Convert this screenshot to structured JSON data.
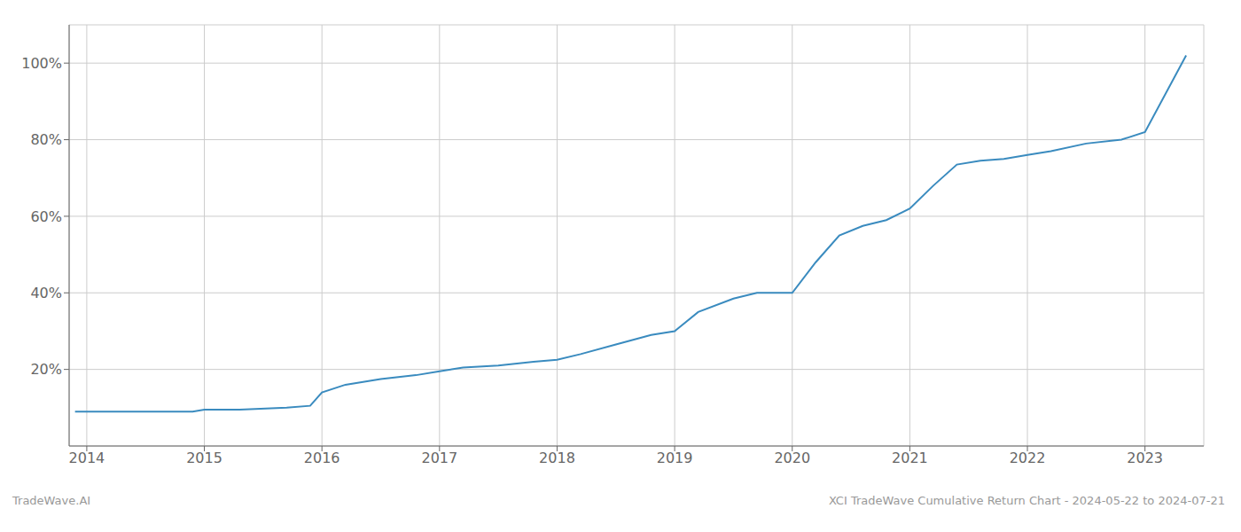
{
  "chart_data": {
    "type": "line",
    "x": [
      2013.9,
      2014.0,
      2014.1,
      2014.3,
      2014.6,
      2014.9,
      2015.0,
      2015.1,
      2015.3,
      2015.7,
      2015.9,
      2016.0,
      2016.2,
      2016.5,
      2016.8,
      2017.0,
      2017.2,
      2017.5,
      2017.8,
      2018.0,
      2018.2,
      2018.5,
      2018.8,
      2019.0,
      2019.2,
      2019.5,
      2019.7,
      2020.0,
      2020.2,
      2020.4,
      2020.6,
      2020.8,
      2021.0,
      2021.2,
      2021.4,
      2021.6,
      2021.8,
      2022.0,
      2022.2,
      2022.5,
      2022.8,
      2023.0,
      2023.35
    ],
    "values": [
      9,
      9,
      9,
      9,
      9,
      9,
      9.5,
      9.5,
      9.5,
      10,
      10.5,
      14,
      16,
      17.5,
      18.5,
      19.5,
      20.5,
      21,
      22,
      22.5,
      24,
      26.5,
      29,
      30,
      35,
      38.5,
      40,
      40,
      48,
      55,
      57.5,
      59,
      62,
      68,
      73.5,
      74.5,
      75,
      76,
      77,
      79,
      80,
      82,
      102
    ],
    "color": "#3a8bbf",
    "xlim": [
      2013.85,
      2023.5
    ],
    "xticks": [
      2014,
      2015,
      2016,
      2017,
      2018,
      2019,
      2020,
      2021,
      2022,
      2023
    ],
    "ylim": [
      0,
      110
    ],
    "yticks": [
      {
        "value": 20,
        "label": "20%"
      },
      {
        "value": 40,
        "label": "40%"
      },
      {
        "value": 60,
        "label": "60%"
      },
      {
        "value": 80,
        "label": "80%"
      },
      {
        "value": 100,
        "label": "100%"
      }
    ],
    "grid": true,
    "annotations": [
      "TradeWave.AI",
      "XCI TradeWave Cumulative Return Chart - 2024-05-22 to 2024-07-21"
    ]
  }
}
